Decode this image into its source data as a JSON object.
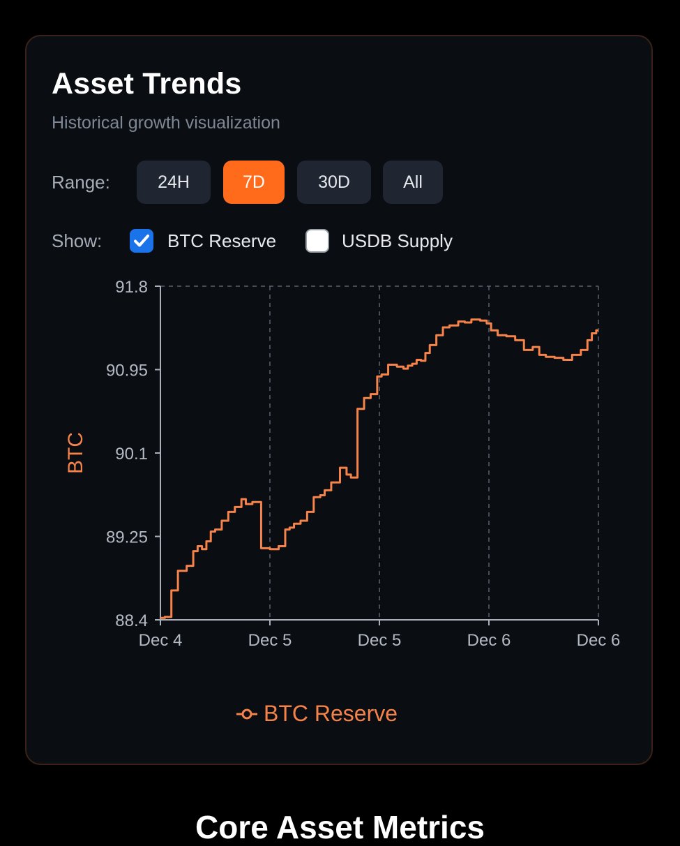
{
  "card": {
    "title": "Asset Trends",
    "subtitle": "Historical growth visualization"
  },
  "range": {
    "label": "Range:",
    "options": [
      "24H",
      "7D",
      "30D",
      "All"
    ],
    "selected": "7D"
  },
  "show": {
    "label": "Show:",
    "btc_reserve": {
      "label": "BTC Reserve",
      "checked": true
    },
    "usdb_supply": {
      "label": "USDB Supply",
      "checked": false
    }
  },
  "colors": {
    "accent": "#ff6b1a",
    "series": "#f5834a",
    "checkbox": "#1a73e8"
  },
  "chart_data": {
    "type": "line",
    "title": "",
    "xlabel": "",
    "ylabel": "BTC",
    "ylim": [
      88.4,
      91.8
    ],
    "yticks": [
      "91.8",
      "90.95",
      "90.1",
      "89.25",
      "88.4"
    ],
    "xticks": [
      "Dec 4",
      "Dec 5",
      "Dec 5",
      "Dec 6",
      "Dec 6"
    ],
    "grid": "vertical-dashed",
    "legend": "bottom-center",
    "series": [
      {
        "name": "BTC Reserve",
        "x": [
          0,
          0.02,
          0.03,
          0.05,
          0.07,
          0.08,
          0.09,
          0.1,
          0.11,
          0.12,
          0.13,
          0.15,
          0.16,
          0.18,
          0.19,
          0.2,
          0.22,
          0.24,
          0.26,
          0.28,
          0.29,
          0.3,
          0.31,
          0.33,
          0.34,
          0.36,
          0.37,
          0.38,
          0.4,
          0.42,
          0.43,
          0.44,
          0.46,
          0.47,
          0.49,
          0.5,
          0.51,
          0.53,
          0.55,
          0.56,
          0.57,
          0.58,
          0.59,
          0.6,
          0.61,
          0.62,
          0.64,
          0.65,
          0.67,
          0.69,
          0.7,
          0.72,
          0.74,
          0.75,
          0.76,
          0.78,
          0.8,
          0.82,
          0.84,
          0.86,
          0.87,
          0.89,
          0.91,
          0.93,
          0.95,
          0.97,
          0.98,
          0.99,
          1.0
        ],
        "y": [
          88.42,
          88.43,
          88.7,
          88.9,
          88.95,
          89.1,
          89.15,
          89.12,
          89.2,
          89.3,
          89.32,
          89.41,
          89.5,
          89.55,
          89.63,
          89.58,
          89.6,
          89.13,
          89.12,
          89.15,
          89.32,
          89.34,
          89.38,
          89.41,
          89.5,
          89.65,
          89.67,
          89.72,
          89.8,
          89.95,
          89.88,
          89.85,
          90.55,
          90.66,
          90.7,
          90.88,
          90.9,
          91.0,
          90.98,
          90.96,
          90.99,
          91.01,
          91.05,
          91.04,
          91.12,
          91.2,
          91.3,
          91.38,
          91.4,
          91.44,
          91.43,
          91.46,
          91.45,
          91.42,
          91.35,
          91.3,
          91.29,
          91.25,
          91.15,
          91.18,
          91.1,
          91.08,
          91.07,
          91.05,
          91.1,
          91.15,
          91.25,
          91.32,
          91.35
        ]
      }
    ]
  },
  "next_section": {
    "heading": "Core Asset Metrics"
  }
}
